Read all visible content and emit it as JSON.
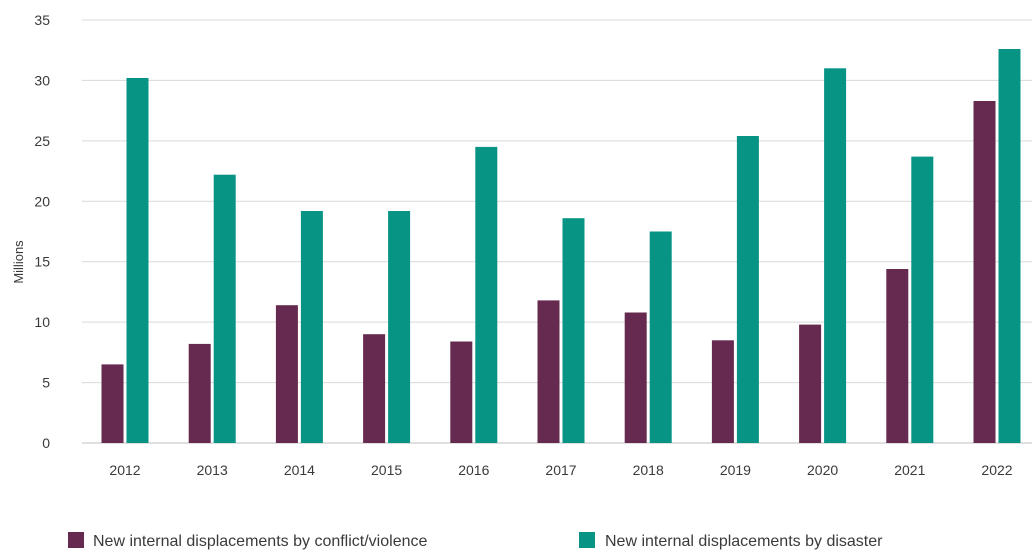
{
  "chart_data": {
    "type": "bar",
    "title": "",
    "xlabel": "",
    "ylabel": "Millions",
    "ylim": [
      0,
      35
    ],
    "yticks": [
      0,
      5,
      10,
      15,
      20,
      25,
      30,
      35
    ],
    "grid": true,
    "legend_position": "bottom",
    "categories": [
      "2012",
      "2013",
      "2014",
      "2015",
      "2016",
      "2017",
      "2018",
      "2019",
      "2020",
      "2021",
      "2022"
    ],
    "series": [
      {
        "name": "New internal displacements by conflict/violence",
        "color": "#66294f",
        "values": [
          6.5,
          8.2,
          11.4,
          9.0,
          8.4,
          11.8,
          10.8,
          8.5,
          9.8,
          14.4,
          28.3
        ]
      },
      {
        "name": "New internal displacements by disaster",
        "color": "#079485",
        "values": [
          30.2,
          22.2,
          19.2,
          19.2,
          24.5,
          18.6,
          17.5,
          25.4,
          31.0,
          23.7,
          32.6
        ]
      }
    ]
  }
}
